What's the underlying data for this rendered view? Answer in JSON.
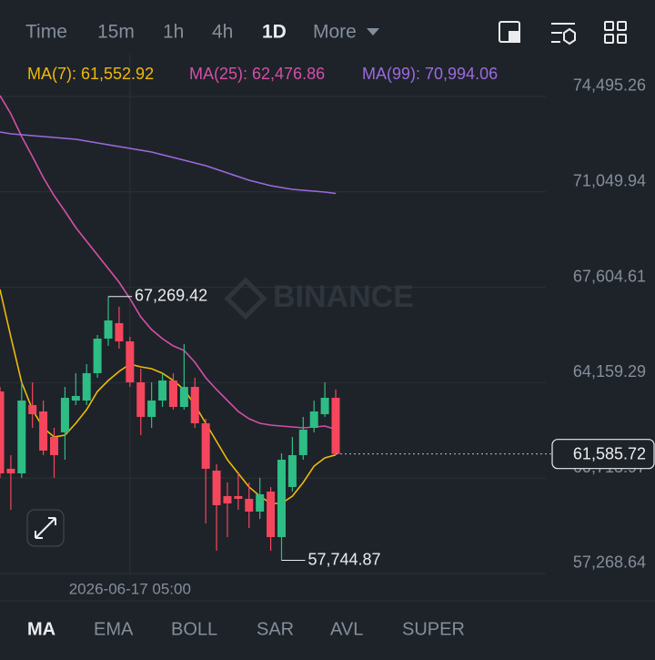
{
  "toolbar": {
    "tabs": [
      "Time",
      "15m",
      "1h",
      "4h",
      "1D",
      "More"
    ],
    "active": 4
  },
  "chart_data": {
    "type": "candlestick",
    "watermark": "BINANCE",
    "up_color": "#2ebd85",
    "down_color": "#f6465d",
    "open": [
      63844,
      61050,
      60885,
      63351,
      63121,
      62200,
      62365,
      63515,
      63515,
      64502,
      65751,
      66310,
      65652,
      64173,
      62924,
      63515,
      64239,
      63285,
      64008,
      62693,
      60984,
      60063,
      60063,
      59965,
      59505,
      60228,
      58584,
      60392,
      61543,
      62529,
      63022,
      63614
    ],
    "high": [
      64008,
      61543,
      64173,
      64173,
      63515,
      62529,
      64008,
      64502,
      64830,
      65882,
      67269.42,
      66901,
      65817,
      64666,
      64173,
      64502,
      64502,
      65554,
      64337,
      62858,
      61214,
      60557,
      60885,
      60557,
      60721,
      60392,
      61609,
      62200,
      62924,
      63515,
      64173,
      63910
    ],
    "low": [
      60721,
      59570,
      60721,
      62529,
      61543,
      60721,
      61378,
      63351,
      63351,
      64337,
      65488,
      65389,
      64008,
      62266,
      62529,
      63285,
      63187,
      63187,
      62529,
      59077,
      58091,
      58584,
      59570,
      58913,
      59242,
      58091,
      57744.87,
      60228,
      61378,
      62365,
      62924,
      61543
    ],
    "close": [
      60885,
      60885,
      63515,
      63022,
      61707,
      61543,
      63614,
      63680,
      64502,
      65751,
      66408,
      65652,
      64173,
      62924,
      63515,
      64239,
      63285,
      64008,
      62693,
      61050,
      59735,
      59800,
      59965,
      59505,
      60129,
      58584,
      61378,
      61543,
      62463,
      63121,
      63614,
      61585.72
    ],
    "series": [
      {
        "name": "MA(7)",
        "label": "MA(7): 61,552.92",
        "color": "#f0b90b",
        "values": [
          67526,
          65817,
          64173,
          63187,
          62529,
          62200,
          62266,
          62693,
          63187,
          63844,
          64239,
          64567,
          64830,
          64732,
          64666,
          64502,
          64239,
          63910,
          63351,
          62693,
          62036,
          61378,
          60885,
          60392,
          60063,
          59800,
          59800,
          60063,
          60557,
          61148,
          61444,
          61552.92
        ]
      },
      {
        "name": "MA(25)",
        "label": "MA(25): 62,476.86",
        "color": "#d44fa8",
        "values": [
          74528,
          73871,
          73049,
          72326,
          71570,
          70912,
          70353,
          69762,
          69268,
          68775,
          68282,
          67789,
          67197,
          66540,
          66080,
          65751,
          65488,
          65323,
          64896,
          64337,
          63910,
          63515,
          63121,
          62858,
          62693,
          62628,
          62595,
          62562,
          62529,
          62562,
          62595,
          62476.86
        ]
      },
      {
        "name": "MA(99)",
        "label": "MA(99): 70,994.06",
        "color": "#9c6ade",
        "values": [
          73213,
          73148,
          73115,
          73082,
          73049,
          73016,
          72983,
          72950,
          72885,
          72819,
          72753,
          72688,
          72622,
          72556,
          72490,
          72392,
          72293,
          72194,
          72096,
          71997,
          71866,
          71734,
          71603,
          71471,
          71373,
          71274,
          71208,
          71142,
          71109,
          71077,
          71044,
          70994.06
        ]
      }
    ],
    "ylim": [
      56282,
      76007
    ],
    "yticks": [
      {
        "value": 74495.26,
        "label": "74,495.26"
      },
      {
        "value": 71049.94,
        "label": "71,049.94"
      },
      {
        "value": 67604.61,
        "label": "67,604.61"
      },
      {
        "value": 64159.29,
        "label": "64,159.29"
      },
      {
        "value": 60713.97,
        "label": "60,713.97"
      },
      {
        "value": 57268.64,
        "label": "57,268.64"
      }
    ],
    "grid": true,
    "high_label": {
      "value": 67269.42,
      "label": "67,269.42",
      "index": 10
    },
    "low_label": {
      "value": 57744.87,
      "label": "57,744.87",
      "index": 26
    },
    "last_price": {
      "value": 61585.72,
      "label": "61,585.72"
    },
    "crosshair": {
      "index": 12,
      "label": "2026-06-17 05:00"
    }
  },
  "indicator_tabs": [
    "MA",
    "EMA",
    "BOLL",
    "SAR",
    "AVL",
    "SUPER"
  ]
}
